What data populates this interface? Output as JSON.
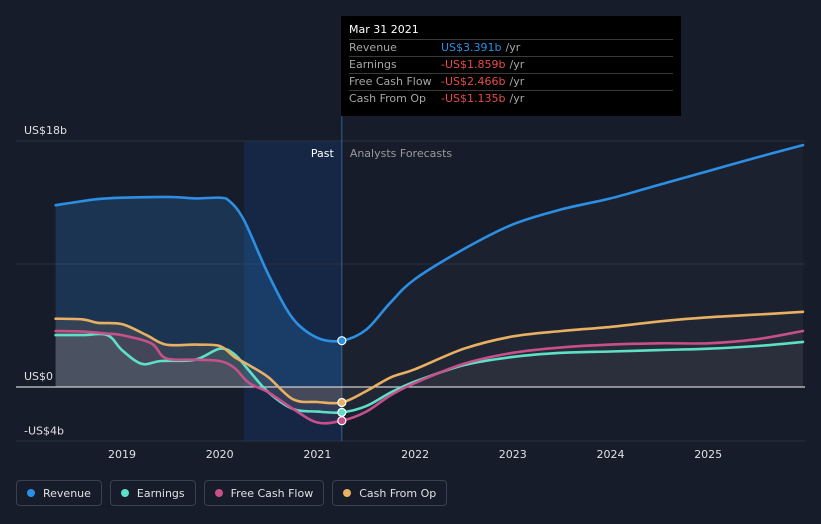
{
  "chart_data": {
    "type": "line",
    "ylim": [
      -4,
      18
    ],
    "xlim": [
      2018.25,
      2026
    ],
    "y_ticks": [
      {
        "value": 18,
        "label": "US$18b"
      },
      {
        "value": 0,
        "label": "US$0"
      },
      {
        "value": -4,
        "label": "-US$4b"
      }
    ],
    "x_ticks": [
      {
        "value": 2019,
        "label": "2019"
      },
      {
        "value": 2020,
        "label": "2020"
      },
      {
        "value": 2021,
        "label": "2021"
      },
      {
        "value": 2022,
        "label": "2022"
      },
      {
        "value": 2023,
        "label": "2023"
      },
      {
        "value": 2024,
        "label": "2024"
      },
      {
        "value": 2025,
        "label": "2025"
      }
    ],
    "past_label": "Past",
    "forecast_label": "Analysts Forecasts",
    "past_region": [
      2020.25,
      2021.25
    ],
    "divider_x": 2021.25,
    "series": [
      {
        "name": "Revenue",
        "color": "#2d8fe3",
        "points": [
          [
            2018.32,
            13.3
          ],
          [
            2018.5,
            13.5
          ],
          [
            2018.75,
            13.75
          ],
          [
            2019.0,
            13.85
          ],
          [
            2019.5,
            13.9
          ],
          [
            2019.75,
            13.8
          ],
          [
            2020.0,
            13.85
          ],
          [
            2020.1,
            13.6
          ],
          [
            2020.25,
            12.2
          ],
          [
            2020.5,
            8.2
          ],
          [
            2020.75,
            5.0
          ],
          [
            2021.0,
            3.6
          ],
          [
            2021.25,
            3.39
          ],
          [
            2021.5,
            4.2
          ],
          [
            2021.75,
            6.2
          ],
          [
            2022.0,
            7.9
          ],
          [
            2022.5,
            10.1
          ],
          [
            2023.0,
            11.9
          ],
          [
            2023.5,
            13.0
          ],
          [
            2024.0,
            13.8
          ],
          [
            2024.5,
            14.8
          ],
          [
            2025.0,
            15.8
          ],
          [
            2025.5,
            16.8
          ],
          [
            2025.97,
            17.7
          ]
        ]
      },
      {
        "name": "Earnings",
        "color": "#5ee0c6",
        "points": [
          [
            2018.32,
            3.8
          ],
          [
            2018.6,
            3.8
          ],
          [
            2018.85,
            3.8
          ],
          [
            2019.0,
            2.7
          ],
          [
            2019.2,
            1.7
          ],
          [
            2019.4,
            1.9
          ],
          [
            2019.75,
            2.0
          ],
          [
            2020.0,
            2.8
          ],
          [
            2020.15,
            2.4
          ],
          [
            2020.3,
            1.2
          ],
          [
            2020.5,
            -0.4
          ],
          [
            2020.75,
            -1.6
          ],
          [
            2021.0,
            -1.8
          ],
          [
            2021.25,
            -1.859
          ],
          [
            2021.5,
            -1.4
          ],
          [
            2021.75,
            -0.4
          ],
          [
            2022.0,
            0.4
          ],
          [
            2022.5,
            1.6
          ],
          [
            2023.0,
            2.2
          ],
          [
            2023.5,
            2.5
          ],
          [
            2024.0,
            2.6
          ],
          [
            2024.5,
            2.7
          ],
          [
            2025.0,
            2.8
          ],
          [
            2025.5,
            3.0
          ],
          [
            2025.97,
            3.3
          ]
        ]
      },
      {
        "name": "Free Cash Flow",
        "color": "#c8508a",
        "points": [
          [
            2018.32,
            4.1
          ],
          [
            2018.6,
            4.05
          ],
          [
            2018.85,
            3.9
          ],
          [
            2019.0,
            3.8
          ],
          [
            2019.3,
            3.2
          ],
          [
            2019.45,
            2.1
          ],
          [
            2019.75,
            2.0
          ],
          [
            2020.0,
            1.9
          ],
          [
            2020.15,
            1.4
          ],
          [
            2020.3,
            0.3
          ],
          [
            2020.5,
            -0.4
          ],
          [
            2020.75,
            -1.6
          ],
          [
            2021.0,
            -2.6
          ],
          [
            2021.25,
            -2.466
          ],
          [
            2021.5,
            -1.8
          ],
          [
            2021.75,
            -0.6
          ],
          [
            2022.0,
            0.3
          ],
          [
            2022.5,
            1.7
          ],
          [
            2023.0,
            2.5
          ],
          [
            2023.5,
            2.9
          ],
          [
            2024.0,
            3.1
          ],
          [
            2024.5,
            3.2
          ],
          [
            2025.0,
            3.2
          ],
          [
            2025.5,
            3.5
          ],
          [
            2025.97,
            4.1
          ]
        ]
      },
      {
        "name": "Cash From Op",
        "color": "#e9b063",
        "points": [
          [
            2018.32,
            5.0
          ],
          [
            2018.6,
            4.95
          ],
          [
            2018.75,
            4.7
          ],
          [
            2019.0,
            4.6
          ],
          [
            2019.25,
            3.8
          ],
          [
            2019.45,
            3.1
          ],
          [
            2019.75,
            3.1
          ],
          [
            2020.0,
            3.0
          ],
          [
            2020.15,
            2.2
          ],
          [
            2020.3,
            1.6
          ],
          [
            2020.5,
            0.7
          ],
          [
            2020.75,
            -0.9
          ],
          [
            2021.0,
            -1.1
          ],
          [
            2021.25,
            -1.135
          ],
          [
            2021.5,
            -0.3
          ],
          [
            2021.75,
            0.7
          ],
          [
            2022.0,
            1.3
          ],
          [
            2022.5,
            2.8
          ],
          [
            2023.0,
            3.7
          ],
          [
            2023.5,
            4.1
          ],
          [
            2024.0,
            4.4
          ],
          [
            2024.5,
            4.8
          ],
          [
            2025.0,
            5.1
          ],
          [
            2025.5,
            5.3
          ],
          [
            2025.97,
            5.5
          ]
        ]
      }
    ]
  },
  "tooltip": {
    "date": "Mar 31 2021",
    "rows": [
      {
        "label": "Revenue",
        "value": "US$3.391b",
        "unit": "/yr",
        "sign": "pos"
      },
      {
        "label": "Earnings",
        "value": "-US$1.859b",
        "unit": "/yr",
        "sign": "neg"
      },
      {
        "label": "Free Cash Flow",
        "value": "-US$2.466b",
        "unit": "/yr",
        "sign": "neg"
      },
      {
        "label": "Cash From Op",
        "value": "-US$1.135b",
        "unit": "/yr",
        "sign": "neg"
      }
    ]
  },
  "legend": [
    {
      "label": "Revenue",
      "color": "#2d8fe3"
    },
    {
      "label": "Earnings",
      "color": "#5ee0c6"
    },
    {
      "label": "Free Cash Flow",
      "color": "#c8508a"
    },
    {
      "label": "Cash From Op",
      "color": "#e9b063"
    }
  ]
}
